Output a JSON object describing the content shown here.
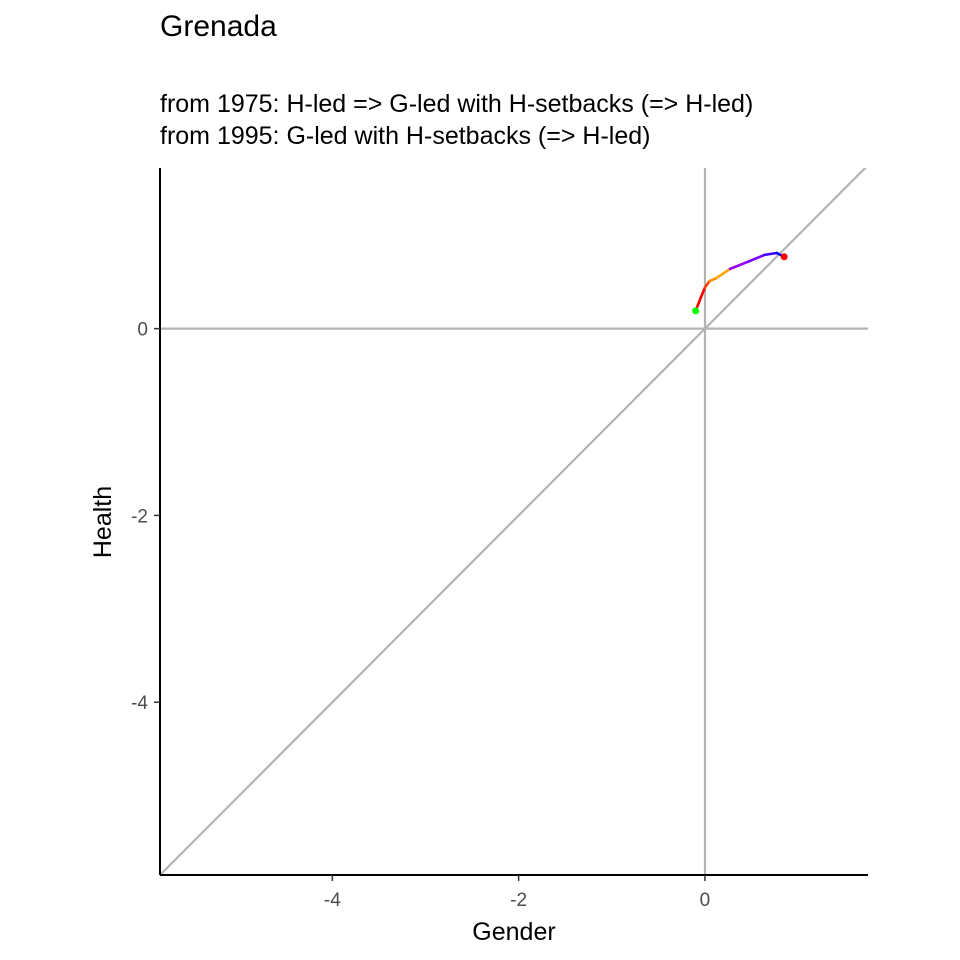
{
  "chart_data": {
    "type": "line",
    "title": "Grenada",
    "subtitle": [
      "from 1975:  H-led => G-led with H-setbacks (=> H-led)",
      "from 1995:  G-led with H-setbacks (=> H-led)"
    ],
    "xlabel": "Gender",
    "ylabel": "Health",
    "xlim": [
      -5.85,
      1.75
    ],
    "ylim": [
      -5.85,
      1.72
    ],
    "x_ticks": [
      -4,
      -2,
      0
    ],
    "y_ticks": [
      0,
      -2,
      -4
    ],
    "x_tick_labels": [
      "-4",
      "-2",
      "0"
    ],
    "y_tick_labels": [
      "0",
      "-2",
      "-4"
    ],
    "grid": false,
    "reference_lines": [
      {
        "kind": "vertical",
        "x": 0,
        "color": "#b3b3b3"
      },
      {
        "kind": "horizontal",
        "y": 0,
        "color": "#b3b3b3"
      },
      {
        "kind": "diagonal",
        "slope": 1,
        "color": "#b3b3b3"
      }
    ],
    "series": [
      {
        "path": [
          {
            "x": -0.1,
            "y": 0.19,
            "color": "#ff0000"
          },
          {
            "x": -0.05,
            "y": 0.32,
            "color": "#ff0000"
          },
          {
            "x": 0.0,
            "y": 0.44,
            "color": "#ff4000"
          },
          {
            "x": 0.05,
            "y": 0.51,
            "color": "#ff8c00"
          },
          {
            "x": 0.12,
            "y": 0.54,
            "color": "#ffa500"
          },
          {
            "x": 0.27,
            "y": 0.64,
            "color": "#9a00ff"
          },
          {
            "x": 0.47,
            "y": 0.72,
            "color": "#7a00ff"
          },
          {
            "x": 0.64,
            "y": 0.79,
            "color": "#4000ff"
          },
          {
            "x": 0.77,
            "y": 0.81,
            "color": "#0000ff"
          },
          {
            "x": 0.85,
            "y": 0.77,
            "color": "#0000ff"
          }
        ],
        "start_point": {
          "x": -0.1,
          "y": 0.19,
          "color": "#00ff00"
        },
        "end_point": {
          "x": 0.85,
          "y": 0.77,
          "color": "#ff0000"
        }
      }
    ]
  }
}
